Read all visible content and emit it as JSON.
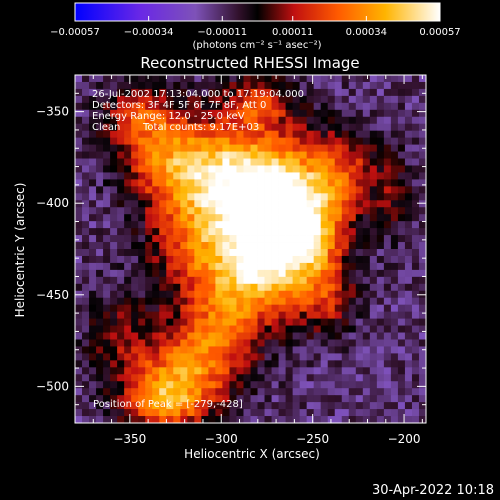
{
  "chart_data": {
    "type": "heatmap",
    "title": "Reconstructed RHESSI Image",
    "xlabel": "Heliocentric X (arcsec)",
    "ylabel": "Heliocentric Y (arcsec)",
    "xlim": [
      -380,
      -188
    ],
    "ylim": [
      -520,
      -330
    ],
    "x_ticks": [
      -350,
      -300,
      -250,
      -200
    ],
    "x_tick_labels": [
      "−350",
      "−300",
      "−250",
      "−200"
    ],
    "y_ticks": [
      -350,
      -400,
      -450,
      -500
    ],
    "y_tick_labels": [
      "−350",
      "−400",
      "−450",
      "−500"
    ],
    "colorbar": {
      "min": -0.00057,
      "max": 0.00057,
      "tick_labels": [
        "−0.00057",
        "−0.00034",
        "−0.00011",
        "0.00011",
        "0.00034",
        "0.00057"
      ],
      "units": "(photons cm⁻² s⁻¹ asec⁻²)"
    },
    "annotations": {
      "time_range": "26-Jul-2002 17:13:04.000 to 17:19:04.000",
      "detectors": "Detectors: 3F 4F 5F 6F 7F 8F, Att 0",
      "energy": "Energy Range: 12.0 - 25.0 keV",
      "method": "Clean",
      "counts": "Total counts: 9.17E+03",
      "peak": "Position of Peak = [-279,-428]"
    },
    "peak": [
      -279,
      -428
    ],
    "sources": [
      {
        "x": -279,
        "y": -428,
        "amp": 1.0,
        "sx": 20,
        "sy": 24
      },
      {
        "x": -268,
        "y": -395,
        "amp": 0.85,
        "sx": 24,
        "sy": 22
      },
      {
        "x": -300,
        "y": -382,
        "amp": 0.62,
        "sx": 22,
        "sy": 18
      },
      {
        "x": -252,
        "y": -420,
        "amp": 0.55,
        "sx": 14,
        "sy": 22
      },
      {
        "x": -330,
        "y": -375,
        "amp": 0.5,
        "sx": 18,
        "sy": 18
      },
      {
        "x": -345,
        "y": -352,
        "amp": 0.42,
        "sx": 14,
        "sy": 12
      },
      {
        "x": -318,
        "y": -420,
        "amp": 0.45,
        "sx": 16,
        "sy": 22
      },
      {
        "x": -300,
        "y": -465,
        "amp": 0.42,
        "sx": 14,
        "sy": 20
      },
      {
        "x": -318,
        "y": -488,
        "amp": 0.55,
        "sx": 18,
        "sy": 16
      },
      {
        "x": -330,
        "y": -508,
        "amp": 0.68,
        "sx": 16,
        "sy": 12
      },
      {
        "x": -355,
        "y": -475,
        "amp": 0.3,
        "sx": 14,
        "sy": 18
      },
      {
        "x": -230,
        "y": -380,
        "amp": 0.32,
        "sx": 12,
        "sy": 14
      },
      {
        "x": -280,
        "y": -345,
        "amp": 0.45,
        "sx": 14,
        "sy": 10
      },
      {
        "x": -240,
        "y": -455,
        "amp": 0.28,
        "sx": 10,
        "sy": 12
      },
      {
        "x": -205,
        "y": -395,
        "amp": 0.25,
        "sx": 8,
        "sy": 16
      }
    ]
  },
  "footer": {
    "timestamp": "30-Apr-2022 10:18"
  }
}
